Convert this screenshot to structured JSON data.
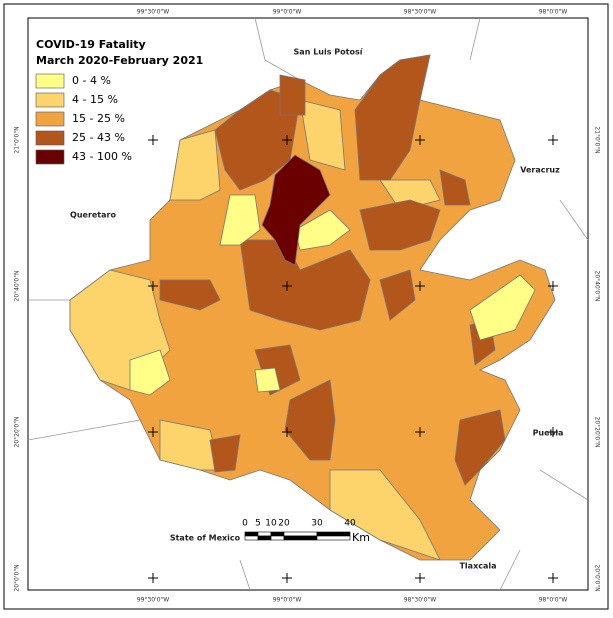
{
  "header": {
    "title": "COVID-19 Fatality",
    "subtitle": "March 2020-February 2021"
  },
  "legend": [
    {
      "label": "0 - 4 %",
      "color": "#ffff88"
    },
    {
      "label": "4 - 15 %",
      "color": "#fdd36b"
    },
    {
      "label": "15 - 25 %",
      "color": "#f0a33e"
    },
    {
      "label": "25 - 43 %",
      "color": "#b3561c"
    },
    {
      "label": "43 - 100 %",
      "color": "#6b0000"
    }
  ],
  "places": [
    "San Luis Potosí",
    "Veracruz",
    "Queretaro",
    "Puebla",
    "State of Mexico",
    "Tlaxcala"
  ],
  "grid": {
    "lon_labels": [
      "99°30'0\"W",
      "99°0'0\"W",
      "98°30'0\"W",
      "98°0'0\"W"
    ],
    "lat_labels": [
      "21°0'0\"N",
      "20°40'0\"N",
      "20°20'0\"N",
      "20°0'0\"N"
    ]
  },
  "scale": {
    "ticks": [
      "0",
      "5",
      "10",
      "20",
      "30",
      "40"
    ],
    "unit": "Km"
  }
}
